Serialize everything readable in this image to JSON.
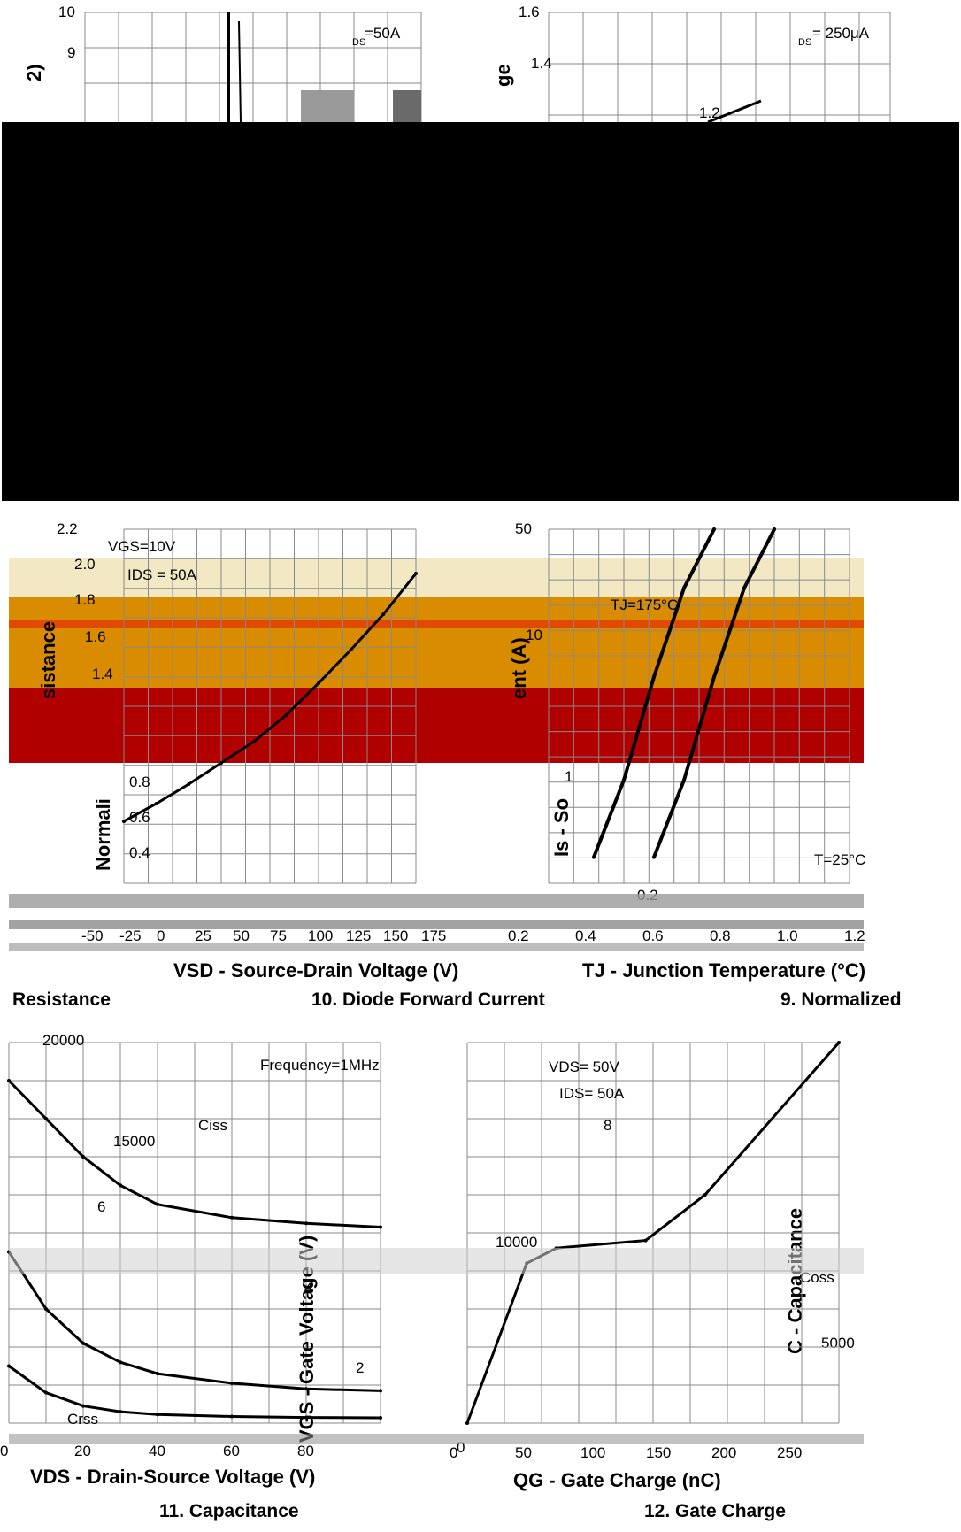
{
  "colors": {
    "black_band": "#000000",
    "red_band": "#b00000",
    "orange_band": "#d98c00",
    "cream_band": "#f2e8c4",
    "grid": "#8a8a8a",
    "curve": "#000000"
  },
  "top_left": {
    "yticks": [
      "10",
      "9"
    ],
    "annotation": "=50A",
    "annotation_sub": "DS",
    "ylabel_fragment": "2)"
  },
  "top_right": {
    "yticks": [
      "1.6",
      "1.4",
      "1.2"
    ],
    "annotation": "= 250μA",
    "annotation_sub": "DS",
    "ylabel_fragment": "ge"
  },
  "chart_data": [
    {
      "type": "line",
      "panel": "normalized-on-resistance",
      "ylim": [
        0.2,
        2.2
      ],
      "yticks": [
        "2.2",
        "2.0",
        "1.8",
        "1.6",
        "1.4",
        "0.8",
        "0.6",
        "0.4"
      ],
      "xticks": [
        "-50",
        "-25",
        "0",
        "25",
        "50",
        "75",
        "100",
        "125",
        "150",
        "175"
      ],
      "annotations": [
        "VGS=10V",
        "IDS = 50A"
      ],
      "ylabel_fragments": [
        "sistance",
        "Normali"
      ],
      "series": [
        {
          "x": [
            -50,
            -25,
            0,
            25,
            50,
            75,
            100,
            125,
            150,
            175
          ],
          "y": [
            0.55,
            0.65,
            0.76,
            0.88,
            1.0,
            1.15,
            1.33,
            1.52,
            1.72,
            1.95
          ]
        }
      ],
      "caption_fragment": "Resistance"
    },
    {
      "type": "line",
      "panel": "diode-forward-current",
      "yticks": [
        "50",
        "10",
        "1",
        "0.2"
      ],
      "xticks": [
        "0.2",
        "0.4",
        "0.6",
        "0.8",
        "1.0",
        "1.2"
      ],
      "annotations": [
        "TJ=175°C",
        "T=25°C"
      ],
      "xlabel": "VSD - Source-Drain Voltage (V)",
      "ylabel_fragments": [
        "ent (A)",
        "Is - So"
      ],
      "series": [
        {
          "name": "TJ=175°C",
          "x": [
            0.35,
            0.45,
            0.55,
            0.65,
            0.75
          ],
          "y": [
            0.3,
            1,
            5,
            20,
            50
          ]
        },
        {
          "name": "TJ=25°C",
          "x": [
            0.55,
            0.65,
            0.75,
            0.85,
            0.95
          ],
          "y": [
            0.3,
            1,
            5,
            20,
            50
          ]
        }
      ],
      "caption": "10. Diode Forward Current"
    },
    {
      "type": "line",
      "panel": "normalized-threshold",
      "xlabel": "TJ - Junction Temperature (°C)",
      "caption_fragment": "9. Normalized"
    },
    {
      "type": "line",
      "panel": "capacitance",
      "ylim": [
        0,
        20000
      ],
      "xlim": [
        0,
        100
      ],
      "yticks": [
        "20000",
        "15000",
        "10000",
        "5000"
      ],
      "xticks": [
        "0",
        "20",
        "40",
        "60",
        "80"
      ],
      "annotations": [
        "Frequency=1MHz"
      ],
      "xlabel": "VDS - Drain-Source Voltage (V)",
      "ylabel": "C - Capacitance",
      "series": [
        {
          "name": "Ciss",
          "x": [
            0,
            10,
            20,
            30,
            40,
            60,
            80,
            100
          ],
          "y": [
            18000,
            16000,
            14000,
            12500,
            11500,
            10800,
            10500,
            10300
          ]
        },
        {
          "name": "Coss",
          "x": [
            0,
            10,
            20,
            30,
            40,
            60,
            80,
            100
          ],
          "y": [
            9000,
            6000,
            4200,
            3200,
            2600,
            2100,
            1800,
            1700
          ]
        },
        {
          "name": "Crss",
          "x": [
            0,
            10,
            20,
            30,
            40,
            60,
            80,
            100
          ],
          "y": [
            3000,
            1600,
            900,
            600,
            450,
            350,
            300,
            280
          ]
        }
      ],
      "caption": "11. Capacitance"
    },
    {
      "type": "line",
      "panel": "gate-charge",
      "ylim": [
        0,
        10
      ],
      "xlim": [
        0,
        250
      ],
      "yticks": [
        "8",
        "6",
        "4",
        "2",
        "0"
      ],
      "xticks": [
        "0",
        "50",
        "100",
        "150",
        "200",
        "250"
      ],
      "annotations": [
        "VDS= 50V",
        "IDS= 50A"
      ],
      "xlabel": "QG - Gate Charge (nC)",
      "ylabel": "VGS - Gate Voltage (V)",
      "series": [
        {
          "x": [
            0,
            40,
            60,
            120,
            160,
            250
          ],
          "y": [
            0,
            4.2,
            4.6,
            4.8,
            6.0,
            10
          ]
        }
      ],
      "caption": "12. Gate Charge"
    }
  ]
}
